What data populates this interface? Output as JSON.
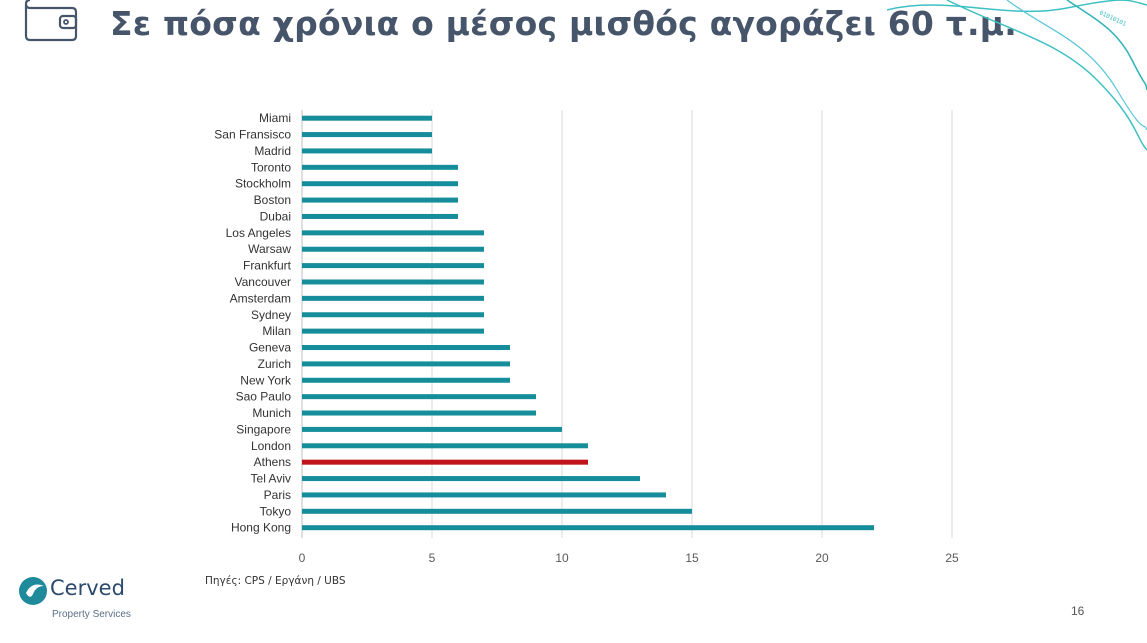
{
  "page": {
    "title": "Σε πόσα χρόνια ο μέσος μισθός αγοράζει 60 τ.μ.",
    "source": "Πηγές: CPS / Εργάνη / UBS",
    "page_number": "16",
    "logo": {
      "name": "Cerved",
      "subtitle": "Property Services"
    },
    "decoration_text": "01010101"
  },
  "colors": {
    "bar": "#168d9b",
    "highlight": "#c0141a",
    "title": "#46556a",
    "grid": "#d9d9d9",
    "accent_wave": "#3cc0c4"
  },
  "chart_data": {
    "type": "bar",
    "orientation": "horizontal",
    "categories": [
      "Miami",
      "San Fransisco",
      "Madrid",
      "Toronto",
      "Stockholm",
      "Boston",
      "Dubai",
      "Los Angeles",
      "Warsaw",
      "Frankfurt",
      "Vancouver",
      "Amsterdam",
      "Sydney",
      "Milan",
      "Geneva",
      "Zurich",
      "New York",
      "Sao Paulo",
      "Munich",
      "Singapore",
      "London",
      "Athens",
      "Tel Aviv",
      "Paris",
      "Tokyo",
      "Hong Kong"
    ],
    "values": [
      5,
      5,
      5,
      6,
      6,
      6,
      6,
      7,
      7,
      7,
      7,
      7,
      7,
      7,
      8,
      8,
      8,
      9,
      9,
      10,
      11,
      11,
      13,
      14,
      15,
      22
    ],
    "highlight_category": "Athens",
    "xlim": [
      0,
      25
    ],
    "xticks": [
      0,
      5,
      10,
      15,
      20,
      25
    ],
    "grid": true,
    "legend": false
  }
}
